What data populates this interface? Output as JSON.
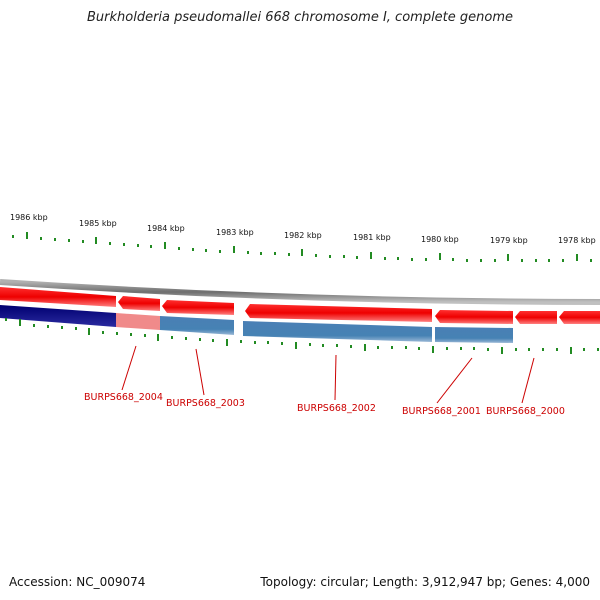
{
  "title": "Burkholderia pseudomallei 668 chromosome I, complete genome",
  "accession": "Accession: NC_009074",
  "summary": "Topology: circular; Length: 3,912,947 bp; Genes: 4,000",
  "scale_labels": [
    "1986 kbp",
    "1985 kbp",
    "1984 kbp",
    "1983 kbp",
    "1982 kbp",
    "1981 kbp",
    "1980 kbp",
    "1979 kbp",
    "1978 kbp"
  ],
  "gene_labels": [
    "BURPS668_2004",
    "BURPS668_2003",
    "BURPS668_2002",
    "BURPS668_2001",
    "BURPS668_2000"
  ],
  "colors": {
    "backbone": "#808080",
    "gene_forward": "#ff0000",
    "gene_light": "#f08080",
    "track_dark": "#000080",
    "track_blue": "#4682b4",
    "tick": "#228b22",
    "label": "#cc0000"
  }
}
